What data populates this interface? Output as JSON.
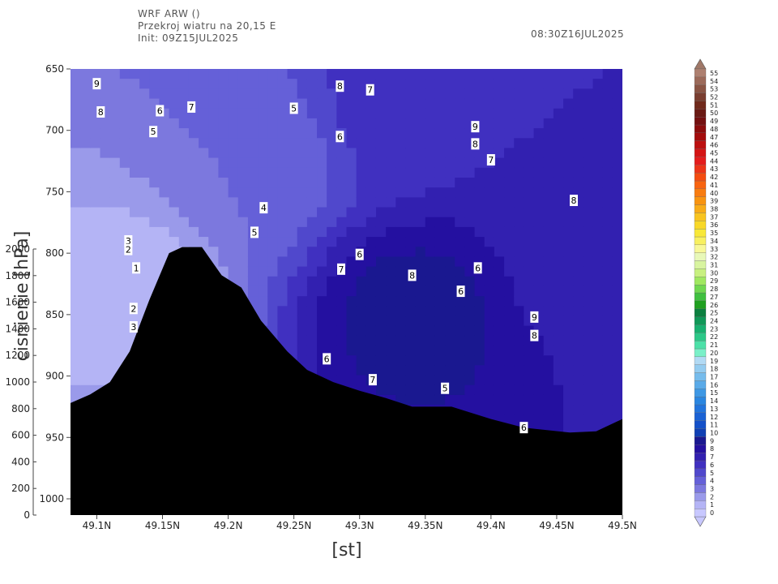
{
  "header": {
    "model": "WRF ARW ()",
    "subtitle": "Przekroj wiatru na 20,15 E",
    "init": "Init: 09Z15JUL2025",
    "valid_time": "08:30Z16JUL2025"
  },
  "chart_data": {
    "type": "heatmap",
    "description_of_axes": "vertical cross-section, latitude vs pressure",
    "xlabel": "[st]",
    "ylabel": "cisnienie [hPa]",
    "x_range": [
      49.08,
      49.5
    ],
    "y_range_hPa": [
      650,
      1020
    ],
    "x_ticks": [
      49.1,
      49.15,
      49.2,
      49.25,
      49.3,
      49.35,
      49.4,
      49.45,
      49.5
    ],
    "x_tick_labels": [
      "49.1N",
      "49.15N",
      "49.2N",
      "49.25N",
      "49.3N",
      "49.35N",
      "49.4N",
      "49.45N",
      "49.5N"
    ],
    "y_ticks": [
      650,
      700,
      750,
      800,
      850,
      900,
      950,
      1000
    ],
    "y_tick_labels": [
      "650",
      "700",
      "750",
      "800",
      "850",
      "900",
      "950",
      "1000"
    ],
    "height_axis": {
      "range_m": [
        0,
        2000
      ],
      "ticks": [
        0,
        200,
        400,
        600,
        800,
        1000,
        1200,
        1400,
        1600,
        1800,
        2000
      ],
      "tick_labels": [
        "0",
        "200",
        "400",
        "600",
        "800",
        "1000",
        "1200",
        "1400",
        "1600",
        "1800",
        "2000"
      ]
    },
    "terrain_hPa": [
      [
        49.08,
        922
      ],
      [
        49.095,
        915
      ],
      [
        49.11,
        905
      ],
      [
        49.125,
        880
      ],
      [
        49.14,
        838
      ],
      [
        49.155,
        800
      ],
      [
        49.165,
        795
      ],
      [
        49.18,
        795
      ],
      [
        49.195,
        818
      ],
      [
        49.21,
        828
      ],
      [
        49.225,
        855
      ],
      [
        49.245,
        880
      ],
      [
        49.26,
        895
      ],
      [
        49.28,
        905
      ],
      [
        49.3,
        912
      ],
      [
        49.32,
        918
      ],
      [
        49.34,
        925
      ],
      [
        49.37,
        925
      ],
      [
        49.4,
        935
      ],
      [
        49.425,
        942
      ],
      [
        49.46,
        946
      ],
      [
        49.48,
        945
      ],
      [
        49.5,
        935
      ]
    ],
    "wind_field_centers": [
      {
        "lat": 49.125,
        "p": 825,
        "value": 1
      },
      {
        "lat": 49.22,
        "p": 725,
        "value": 3.5
      },
      {
        "lat": 49.34,
        "p": 848,
        "value": 9
      },
      {
        "lat": 49.33,
        "p": 680,
        "value": 6
      },
      {
        "lat": 49.47,
        "p": 800,
        "value": 7
      }
    ],
    "contour_labels": [
      {
        "lat": 49.1,
        "p": 662,
        "text": "9"
      },
      {
        "lat": 49.103,
        "p": 685,
        "text": "8"
      },
      {
        "lat": 49.148,
        "p": 684,
        "text": "6"
      },
      {
        "lat": 49.172,
        "p": 681,
        "text": "7"
      },
      {
        "lat": 49.143,
        "p": 701,
        "text": "5"
      },
      {
        "lat": 49.285,
        "p": 664,
        "text": "8"
      },
      {
        "lat": 49.25,
        "p": 682,
        "text": "5"
      },
      {
        "lat": 49.308,
        "p": 667,
        "text": "7"
      },
      {
        "lat": 49.285,
        "p": 705,
        "text": "6"
      },
      {
        "lat": 49.388,
        "p": 697,
        "text": "9"
      },
      {
        "lat": 49.388,
        "p": 711,
        "text": "8"
      },
      {
        "lat": 49.4,
        "p": 724,
        "text": "7"
      },
      {
        "lat": 49.463,
        "p": 757,
        "text": "8"
      },
      {
        "lat": 49.227,
        "p": 763,
        "text": "4"
      },
      {
        "lat": 49.22,
        "p": 783,
        "text": "5"
      },
      {
        "lat": 49.124,
        "p": 790,
        "text": "3"
      },
      {
        "lat": 49.124,
        "p": 797,
        "text": "2"
      },
      {
        "lat": 49.13,
        "p": 812,
        "text": "1"
      },
      {
        "lat": 49.128,
        "p": 845,
        "text": "2"
      },
      {
        "lat": 49.128,
        "p": 860,
        "text": "3"
      },
      {
        "lat": 49.3,
        "p": 801,
        "text": "6"
      },
      {
        "lat": 49.286,
        "p": 813,
        "text": "7"
      },
      {
        "lat": 49.34,
        "p": 818,
        "text": "8"
      },
      {
        "lat": 49.39,
        "p": 812,
        "text": "6"
      },
      {
        "lat": 49.377,
        "p": 831,
        "text": "6"
      },
      {
        "lat": 49.433,
        "p": 852,
        "text": "9"
      },
      {
        "lat": 49.433,
        "p": 867,
        "text": "8"
      },
      {
        "lat": 49.275,
        "p": 886,
        "text": "6"
      },
      {
        "lat": 49.31,
        "p": 903,
        "text": "7"
      },
      {
        "lat": 49.365,
        "p": 910,
        "text": "5"
      },
      {
        "lat": 49.425,
        "p": 942,
        "text": "6"
      }
    ],
    "colorbar": {
      "levels": [
        "0",
        "1",
        "2",
        "3",
        "4",
        "5",
        "6",
        "7",
        "8",
        "9",
        "10",
        "11",
        "12",
        "13",
        "14",
        "15",
        "16",
        "17",
        "18",
        "19",
        "20",
        "21",
        "22",
        "23",
        "24",
        "25",
        "26",
        "27",
        "28",
        "29",
        "30",
        "31",
        "32",
        "33",
        "34",
        "35",
        "36",
        "37",
        "38",
        "39",
        "40",
        "41",
        "42",
        "43",
        "44",
        "45",
        "46",
        "47",
        "48",
        "49",
        "50",
        "51",
        "52",
        "53",
        "54",
        "55"
      ],
      "colors": [
        "#c8c8ff",
        "#b4b4f5",
        "#9a9aea",
        "#7c78de",
        "#6560d8",
        "#5048cc",
        "#4030c0",
        "#3220b0",
        "#2410a0",
        "#1a1890",
        "#1040b4",
        "#1450c8",
        "#1a62d4",
        "#2274dc",
        "#2a86e0",
        "#3e98e4",
        "#5aaae8",
        "#76bcec",
        "#94ccf0",
        "#b2daf4",
        "#7af0c8",
        "#4ce0a8",
        "#2cc888",
        "#18b070",
        "#109858",
        "#0c8040",
        "#20a020",
        "#40c040",
        "#70d850",
        "#a0e860",
        "#c8f080",
        "#d8f4a0",
        "#e8f8b8",
        "#f8f898",
        "#f8f060",
        "#f8e838",
        "#f8d828",
        "#f8c420",
        "#f8ac18",
        "#f89410",
        "#f87c10",
        "#f86410",
        "#f44c10",
        "#ec3418",
        "#e41c1c",
        "#d41414",
        "#bc1010",
        "#a40c0c",
        "#8c0c0c",
        "#741010",
        "#6a1a14",
        "#702a1c",
        "#7a3e30",
        "#8a5444",
        "#9c6a5a",
        "#ae8070"
      ]
    }
  }
}
